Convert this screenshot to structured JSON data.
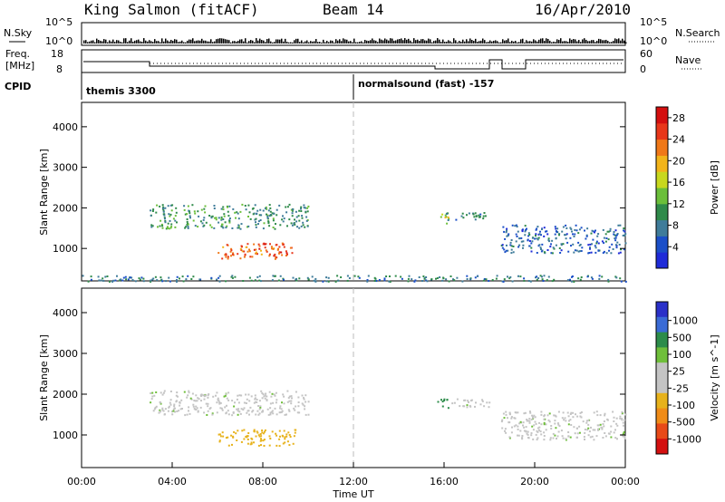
{
  "header": {
    "station": "King Salmon (fitACF)",
    "beam": "Beam 14",
    "date": "16/Apr/2010"
  },
  "noise_panel": {
    "left_label": "N.Sky",
    "right_label": "N.Search",
    "left_ticks": [
      "10^5",
      "10^0"
    ],
    "right_ticks": [
      "10^5",
      "10^0"
    ]
  },
  "freq_panel": {
    "left_label_line1": "Freq.",
    "left_label_line2": "[MHz]",
    "right_label": "Nave",
    "left_ticks": [
      "18",
      "8"
    ],
    "right_ticks": [
      "60",
      "0"
    ]
  },
  "cpid_panel": {
    "label": "CPID",
    "programs": [
      "themis 3300",
      "normalsound (fast) -157"
    ]
  },
  "colors": {
    "power": [
      "#1f2bd8",
      "#1b4fc8",
      "#3f7c9a",
      "#2f8a4a",
      "#6bbf3a",
      "#c8d81e",
      "#f2b41a",
      "#f07818",
      "#e8371a",
      "#d40f0f"
    ],
    "velocity": [
      "#2a30c8",
      "#3a6bd6",
      "#2c8c4a",
      "#6fbf3a",
      "#c4c4c4",
      "#c4c4c4",
      "#e7b21c",
      "#f08c18",
      "#e84a18",
      "#d41010"
    ]
  },
  "chart_data": [
    {
      "type": "heatmap",
      "panel": "power",
      "ylabel": "Slant Range [km]",
      "yticks": [
        1000,
        2000,
        3000,
        4000
      ],
      "ylim": [
        200,
        4600
      ],
      "xlim": [
        0,
        24
      ],
      "colorbar_label": "Power [dB]",
      "colorbar_ticks": [
        4,
        8,
        12,
        16,
        20,
        24,
        28
      ],
      "colorbar_range": [
        0,
        30
      ],
      "regions": [
        {
          "t": [
            3.0,
            10.0
          ],
          "range_km": [
            1500,
            2100
          ],
          "value": 10
        },
        {
          "t": [
            6.0,
            9.5
          ],
          "range_km": [
            750,
            1150
          ],
          "value": 24
        },
        {
          "t": [
            15.7,
            16.2
          ],
          "range_km": [
            1600,
            1900
          ],
          "value": 16
        },
        {
          "t": [
            16.0,
            18.0
          ],
          "range_km": [
            1700,
            1900
          ],
          "value": 8
        },
        {
          "t": [
            18.5,
            24.0
          ],
          "range_km": [
            900,
            1600
          ],
          "value": 6
        },
        {
          "t": [
            0.0,
            24.0
          ],
          "range_km": [
            200,
            350
          ],
          "value": 8
        }
      ]
    },
    {
      "type": "heatmap",
      "panel": "velocity",
      "ylabel": "Slant Range [km]",
      "yticks": [
        1000,
        2000,
        3000,
        4000
      ],
      "ylim": [
        200,
        4600
      ],
      "xlim": [
        0,
        24
      ],
      "xlabel": "Time UT",
      "xticks": [
        "00:00",
        "04:00",
        "08:00",
        "12:00",
        "16:00",
        "20:00",
        "00:00"
      ],
      "colorbar_label": "Velocity [m s^-1]",
      "colorbar_ticks": [
        "1000",
        "500",
        "100",
        "25",
        "-25",
        "-100",
        "-500",
        "-1000"
      ],
      "regions": [
        {
          "t": [
            3.0,
            10.0
          ],
          "range_km": [
            1500,
            2100
          ],
          "value": 0
        },
        {
          "t": [
            6.0,
            9.5
          ],
          "range_km": [
            750,
            1150
          ],
          "value": -150
        },
        {
          "t": [
            15.7,
            16.2
          ],
          "range_km": [
            1600,
            1900
          ],
          "value": 200
        },
        {
          "t": [
            16.0,
            18.0
          ],
          "range_km": [
            1700,
            1900
          ],
          "value": 0
        },
        {
          "t": [
            18.5,
            24.0
          ],
          "range_km": [
            900,
            1600
          ],
          "value": 0
        }
      ]
    }
  ]
}
